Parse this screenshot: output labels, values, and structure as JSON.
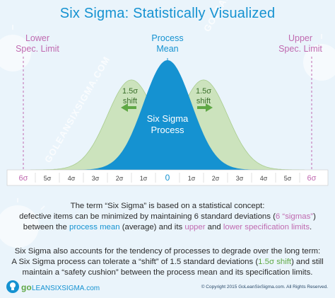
{
  "title": "Six Sigma: Statistically Visualized",
  "labels": {
    "lsl_line1": "Lower",
    "lsl_line2": "Spec. Limit",
    "usl_line1": "Upper",
    "usl_line2": "Spec. Limit",
    "mean_line1": "Process",
    "mean_line2": "Mean",
    "left_shift_line1": "1.5σ",
    "left_shift_line2": "shift",
    "right_shift_line1": "1.5σ",
    "right_shift_line2": "shift",
    "process_line1": "Six Sigma",
    "process_line2": "Process"
  },
  "axis_ticks": [
    "6σ",
    "5σ",
    "4σ",
    "3σ",
    "2σ",
    "1σ",
    "0",
    "1σ",
    "2σ",
    "3σ",
    "4σ",
    "5σ",
    "6σ"
  ],
  "chart_data": {
    "type": "area",
    "x_range": [
      -6,
      6
    ],
    "series": [
      {
        "center": -1.5,
        "sigma": 1
      },
      {
        "center": 0,
        "sigma": 1
      },
      {
        "center": 1.5,
        "sigma": 1
      }
    ],
    "spec_limits": [
      -6,
      6
    ]
  },
  "paragraph1": {
    "line1": "The term “Six Sigma” is based on a statistical concept:",
    "line2_a": "defective items can be minimized by maintaining 6 standard deviations (",
    "line2_b": "6 “sigmas”",
    "line2_c": ")",
    "line3_a": "between the ",
    "line3_b": "process mean",
    "line3_c": " (average) and its ",
    "line3_d": "upper",
    "line3_e": " and ",
    "line3_f": "lower specification limits",
    "line3_g": "."
  },
  "paragraph2": {
    "line1": "Six Sigma also accounts for the tendency of processes to degrade over the long term:",
    "line2_a": "A Six Sigma process can tolerate a “shift” of 1.5 standard deviations (",
    "line2_b": "1.5σ shift",
    "line2_c": ") and still",
    "line3": "maintain a “safety cushion” between the process mean and its specification limits."
  },
  "watermark": "GOLEANSIXSIGMA.COM",
  "logo": {
    "go": "go",
    "rest": "LEANSIXSIGMA.com"
  },
  "copyright": "© Copyright 2015 GoLeanSixSigma.com. All Rights Reserved.",
  "colors": {
    "blue": "#1592d1",
    "green_fill": "#c7dfb2",
    "pink": "#c06ab0",
    "axis_bg": "#ffffff"
  }
}
